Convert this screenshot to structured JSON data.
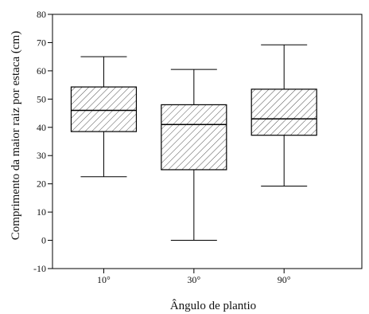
{
  "chart_data": {
    "type": "box",
    "title": "",
    "xlabel": "Ângulo de plantio",
    "ylabel": "Comprimento da maior raiz por estaca (cm)",
    "categories": [
      "10°",
      "30°",
      "90°"
    ],
    "boxes": [
      {
        "category": "10°",
        "min": 22.5,
        "q1": 38.5,
        "median": 46,
        "q3": 54.3,
        "max": 65
      },
      {
        "category": "30°",
        "min": 0,
        "q1": 25,
        "median": 41,
        "q3": 48,
        "max": 60.5
      },
      {
        "category": "90°",
        "min": 19.2,
        "q1": 37.2,
        "median": 43,
        "q3": 53.5,
        "max": 69.2
      }
    ],
    "ylim": [
      -10,
      80
    ],
    "yticks": [
      -10,
      0,
      10,
      20,
      30,
      40,
      50,
      60,
      70,
      80
    ],
    "grid": false,
    "legend": "none",
    "box_fill": "diagonal-hatch",
    "colors": {
      "stroke": "#000000",
      "hatch": "#555555",
      "background": "#ffffff"
    }
  }
}
